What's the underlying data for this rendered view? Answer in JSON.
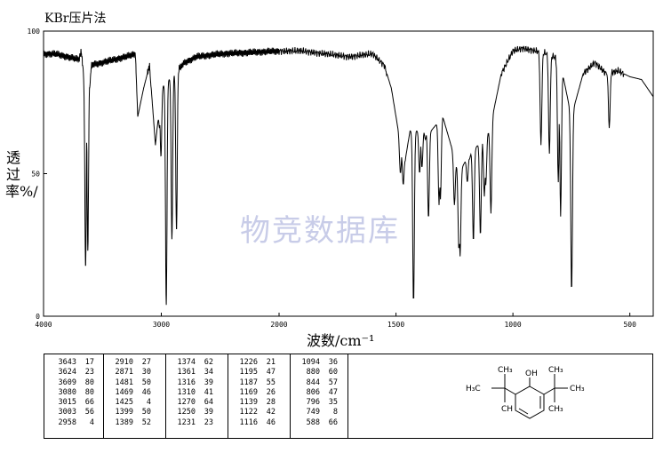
{
  "title": "KBr压片法",
  "watermark": "物竞数据库",
  "chart_data": {
    "type": "line",
    "xlabel": "波数/cm⁻¹",
    "ylabel": "透过率%/",
    "xlim": [
      4000,
      400
    ],
    "ylim": [
      0,
      100
    ],
    "x_ticks": [
      4000,
      3000,
      2000,
      1500,
      1000,
      500
    ],
    "y_ticks": [
      0,
      50,
      100
    ],
    "grid": false,
    "baseline": [
      [
        4000,
        92
      ],
      [
        3900,
        92
      ],
      [
        3800,
        91
      ],
      [
        3700,
        90
      ],
      [
        3680,
        93
      ],
      [
        3660,
        85
      ],
      [
        3600,
        88
      ],
      [
        3500,
        89
      ],
      [
        3300,
        91
      ],
      [
        3220,
        92
      ],
      [
        3200,
        70
      ],
      [
        3150,
        80
      ],
      [
        3100,
        88
      ],
      [
        3050,
        60
      ],
      [
        3000,
        80
      ],
      [
        2800,
        89
      ],
      [
        2700,
        91
      ],
      [
        2500,
        92
      ],
      [
        2000,
        93
      ],
      [
        1900,
        93
      ],
      [
        1800,
        92
      ],
      [
        1700,
        91
      ],
      [
        1600,
        92
      ],
      [
        1550,
        88
      ],
      [
        1520,
        80
      ],
      [
        1480,
        60
      ],
      [
        1460,
        55
      ],
      [
        1440,
        65
      ],
      [
        1350,
        65
      ],
      [
        1300,
        70
      ],
      [
        1230,
        50
      ],
      [
        1200,
        55
      ],
      [
        1150,
        60
      ],
      [
        1100,
        65
      ],
      [
        1050,
        85
      ],
      [
        1000,
        93
      ],
      [
        960,
        94
      ],
      [
        900,
        93
      ],
      [
        850,
        92
      ],
      [
        800,
        90
      ],
      [
        750,
        70
      ],
      [
        700,
        85
      ],
      [
        650,
        89
      ],
      [
        600,
        85
      ],
      [
        550,
        86
      ],
      [
        500,
        84
      ],
      [
        450,
        83
      ],
      [
        400,
        77
      ]
    ],
    "peaks": [
      {
        "x": 3643,
        "y": 17
      },
      {
        "x": 3624,
        "y": 23
      },
      {
        "x": 3609,
        "y": 80
      },
      {
        "x": 3080,
        "y": 80
      },
      {
        "x": 3015,
        "y": 66
      },
      {
        "x": 3003,
        "y": 56
      },
      {
        "x": 2958,
        "y": 4
      },
      {
        "x": 2910,
        "y": 27
      },
      {
        "x": 2871,
        "y": 30
      },
      {
        "x": 1481,
        "y": 50
      },
      {
        "x": 1469,
        "y": 46
      },
      {
        "x": 1425,
        "y": 4
      },
      {
        "x": 1399,
        "y": 50
      },
      {
        "x": 1389,
        "y": 52
      },
      {
        "x": 1374,
        "y": 62
      },
      {
        "x": 1361,
        "y": 34
      },
      {
        "x": 1316,
        "y": 39
      },
      {
        "x": 1310,
        "y": 41
      },
      {
        "x": 1270,
        "y": 64
      },
      {
        "x": 1250,
        "y": 39
      },
      {
        "x": 1231,
        "y": 23
      },
      {
        "x": 1226,
        "y": 21
      },
      {
        "x": 1195,
        "y": 47
      },
      {
        "x": 1187,
        "y": 55
      },
      {
        "x": 1169,
        "y": 26
      },
      {
        "x": 1139,
        "y": 28
      },
      {
        "x": 1122,
        "y": 42
      },
      {
        "x": 1116,
        "y": 46
      },
      {
        "x": 1094,
        "y": 36
      },
      {
        "x": 880,
        "y": 60
      },
      {
        "x": 844,
        "y": 57
      },
      {
        "x": 806,
        "y": 47
      },
      {
        "x": 796,
        "y": 35
      },
      {
        "x": 749,
        "y": 8
      },
      {
        "x": 588,
        "y": 66
      }
    ]
  },
  "peak_table": [
    [
      [
        "3643",
        "17"
      ],
      [
        "3624",
        "23"
      ],
      [
        "3609",
        "80"
      ],
      [
        "3080",
        "80"
      ],
      [
        "3015",
        "66"
      ],
      [
        "3003",
        "56"
      ],
      [
        "2958",
        "4"
      ]
    ],
    [
      [
        "2910",
        "27"
      ],
      [
        "2871",
        "30"
      ],
      [
        "1481",
        "50"
      ],
      [
        "1469",
        "46"
      ],
      [
        "1425",
        "4"
      ],
      [
        "1399",
        "50"
      ],
      [
        "1389",
        "52"
      ]
    ],
    [
      [
        "1374",
        "62"
      ],
      [
        "1361",
        "34"
      ],
      [
        "1316",
        "39"
      ],
      [
        "1310",
        "41"
      ],
      [
        "1270",
        "64"
      ],
      [
        "1250",
        "39"
      ],
      [
        "1231",
        "23"
      ]
    ],
    [
      [
        "1226",
        "21"
      ],
      [
        "1195",
        "47"
      ],
      [
        "1187",
        "55"
      ],
      [
        "1169",
        "26"
      ],
      [
        "1139",
        "28"
      ],
      [
        "1122",
        "42"
      ],
      [
        "1116",
        "46"
      ]
    ],
    [
      [
        "1094",
        "36"
      ],
      [
        "880",
        "60"
      ],
      [
        "844",
        "57"
      ],
      [
        "806",
        "47"
      ],
      [
        "796",
        "35"
      ],
      [
        "749",
        "8"
      ],
      [
        "588",
        "66"
      ]
    ]
  ],
  "structure_labels": {
    "oh": "OH",
    "left_group": "H₃C",
    "right_methyl": "CH₃",
    "ch_partial": "CH"
  }
}
